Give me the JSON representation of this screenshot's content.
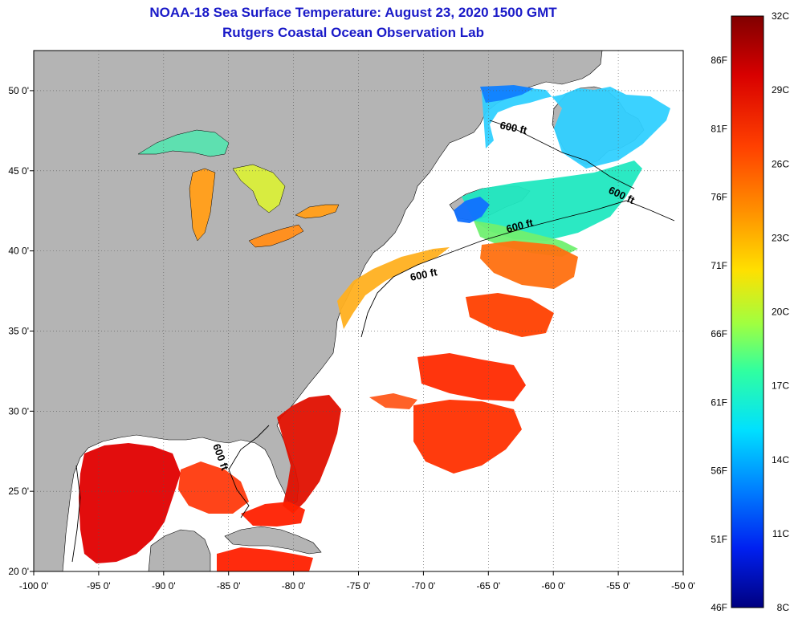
{
  "header": {
    "title": "NOAA-18 Sea Surface Temperature:  August 23, 2020 1500 GMT",
    "subtitle": "Rutgers Coastal Ocean Observation Lab"
  },
  "map": {
    "longitude_ticks": [
      "-100 0'",
      "-95 0'",
      "-90 0'",
      "-85 0'",
      "-80 0'",
      "-75 0'",
      "-70 0'",
      "-65 0'",
      "-60 0'",
      "-55 0'",
      "-50 0'"
    ],
    "latitude_ticks": [
      "50 0'",
      "45 0'",
      "40 0'",
      "35 0'",
      "30 0'",
      "25 0'",
      "20 0'"
    ],
    "lon_range": [
      -100,
      -50
    ],
    "lat_range": [
      20,
      52.5
    ],
    "contour_labels": [
      "600 ft",
      "600 ft",
      "600 ft",
      "600 ft",
      "600 ft"
    ]
  },
  "colorbar": {
    "fahrenheit_labels": [
      "86F",
      "81F",
      "76F",
      "71F",
      "66F",
      "61F",
      "56F",
      "51F",
      "46F"
    ],
    "celsius_labels": [
      "32C",
      "29C",
      "26C",
      "23C",
      "20C",
      "17C",
      "14C",
      "11C",
      "8C"
    ],
    "range_c": [
      8,
      32
    ]
  },
  "colors": {
    "land": "#b4b4b4",
    "ocean_nodata": "#ffffff",
    "title": "#1a1ac8",
    "colorbar_stops": [
      "#800000",
      "#e00000",
      "#ff6000",
      "#ffc000",
      "#e0ff20",
      "#40ff90",
      "#00e0ff",
      "#0080ff",
      "#0010ff",
      "#000080"
    ]
  }
}
